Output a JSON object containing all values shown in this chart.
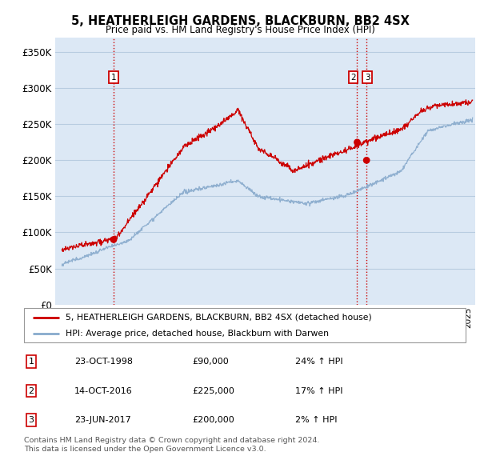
{
  "title": "5, HEATHERLEIGH GARDENS, BLACKBURN, BB2 4SX",
  "subtitle": "Price paid vs. HM Land Registry's House Price Index (HPI)",
  "ylabel_ticks": [
    "£0",
    "£50K",
    "£100K",
    "£150K",
    "£200K",
    "£250K",
    "£300K",
    "£350K"
  ],
  "ytick_values": [
    0,
    50000,
    100000,
    150000,
    200000,
    250000,
    300000,
    350000
  ],
  "ylim": [
    0,
    370000
  ],
  "xlim_start": 1994.5,
  "xlim_end": 2025.5,
  "transactions": [
    {
      "label": "1",
      "date": "23-OCT-1998",
      "price": 90000,
      "hpi_pct": "24%",
      "x": 1998.81
    },
    {
      "label": "2",
      "date": "14-OCT-2016",
      "price": 225000,
      "hpi_pct": "17%",
      "x": 2016.79
    },
    {
      "label": "3",
      "date": "23-JUN-2017",
      "price": 200000,
      "hpi_pct": "2%",
      "x": 2017.48
    }
  ],
  "vline_color": "#cc0000",
  "property_line_color": "#cc0000",
  "hpi_line_color": "#88aacc",
  "legend_label_property": "5, HEATHERLEIGH GARDENS, BLACKBURN, BB2 4SX (detached house)",
  "legend_label_hpi": "HPI: Average price, detached house, Blackburn with Darwen",
  "table_rows": [
    [
      "1",
      "23-OCT-1998",
      "£90,000",
      "24% ↑ HPI"
    ],
    [
      "2",
      "14-OCT-2016",
      "£225,000",
      "17% ↑ HPI"
    ],
    [
      "3",
      "23-JUN-2017",
      "£200,000",
      "2% ↑ HPI"
    ]
  ],
  "footer": "Contains HM Land Registry data © Crown copyright and database right 2024.\nThis data is licensed under the Open Government Licence v3.0.",
  "bg_color": "#ffffff",
  "plot_bg_color": "#dce8f5",
  "grid_color": "#b8cce0"
}
